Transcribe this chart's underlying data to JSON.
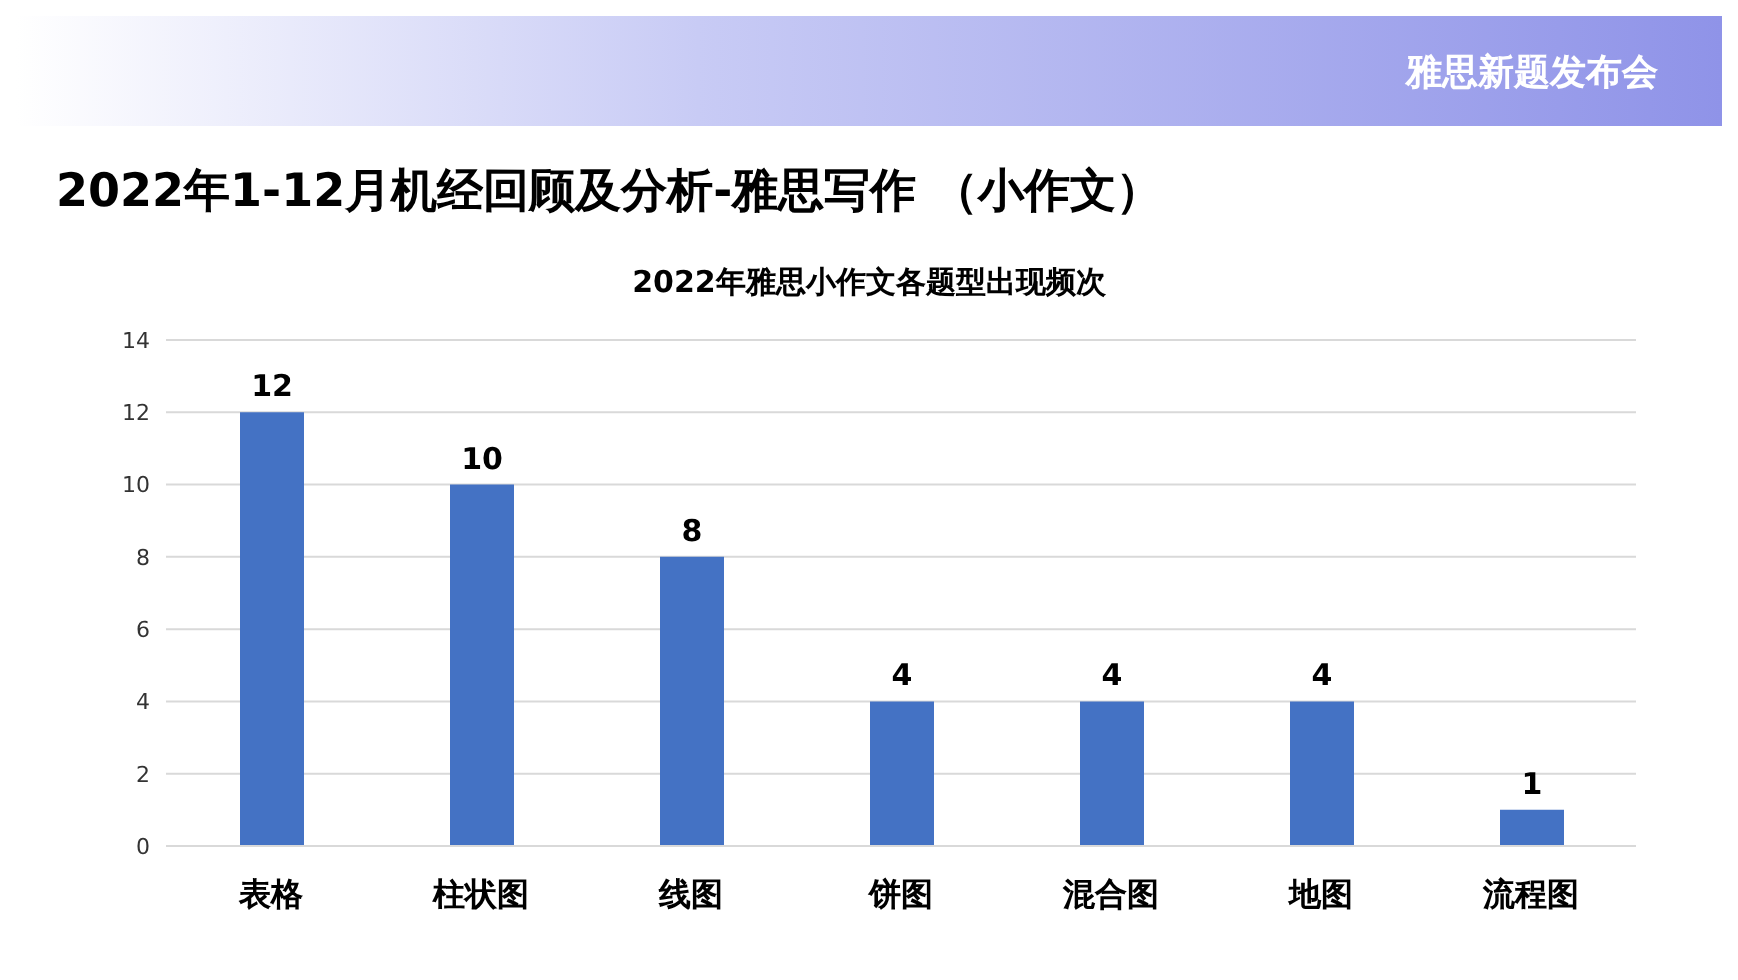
{
  "chart_data": {
    "type": "bar",
    "title": "2022年1-12月机经回顾及分析-雅思写作 （小作文）",
    "subtitle": "2022年雅思小作文各题型出现频次",
    "annotations": [
      "雅思新题发布会"
    ],
    "categories": [
      "表格",
      "柱状图",
      "线图",
      "饼图",
      "混合图",
      "地图",
      "流程图"
    ],
    "values": [
      12,
      10,
      8,
      4,
      4,
      4,
      1
    ],
    "color": "#4472c4",
    "ylim": [
      0,
      14
    ],
    "yticks": [
      0,
      2,
      4,
      6,
      8,
      10,
      12,
      14
    ],
    "grid": "y",
    "data_labels": true,
    "legend": false
  }
}
